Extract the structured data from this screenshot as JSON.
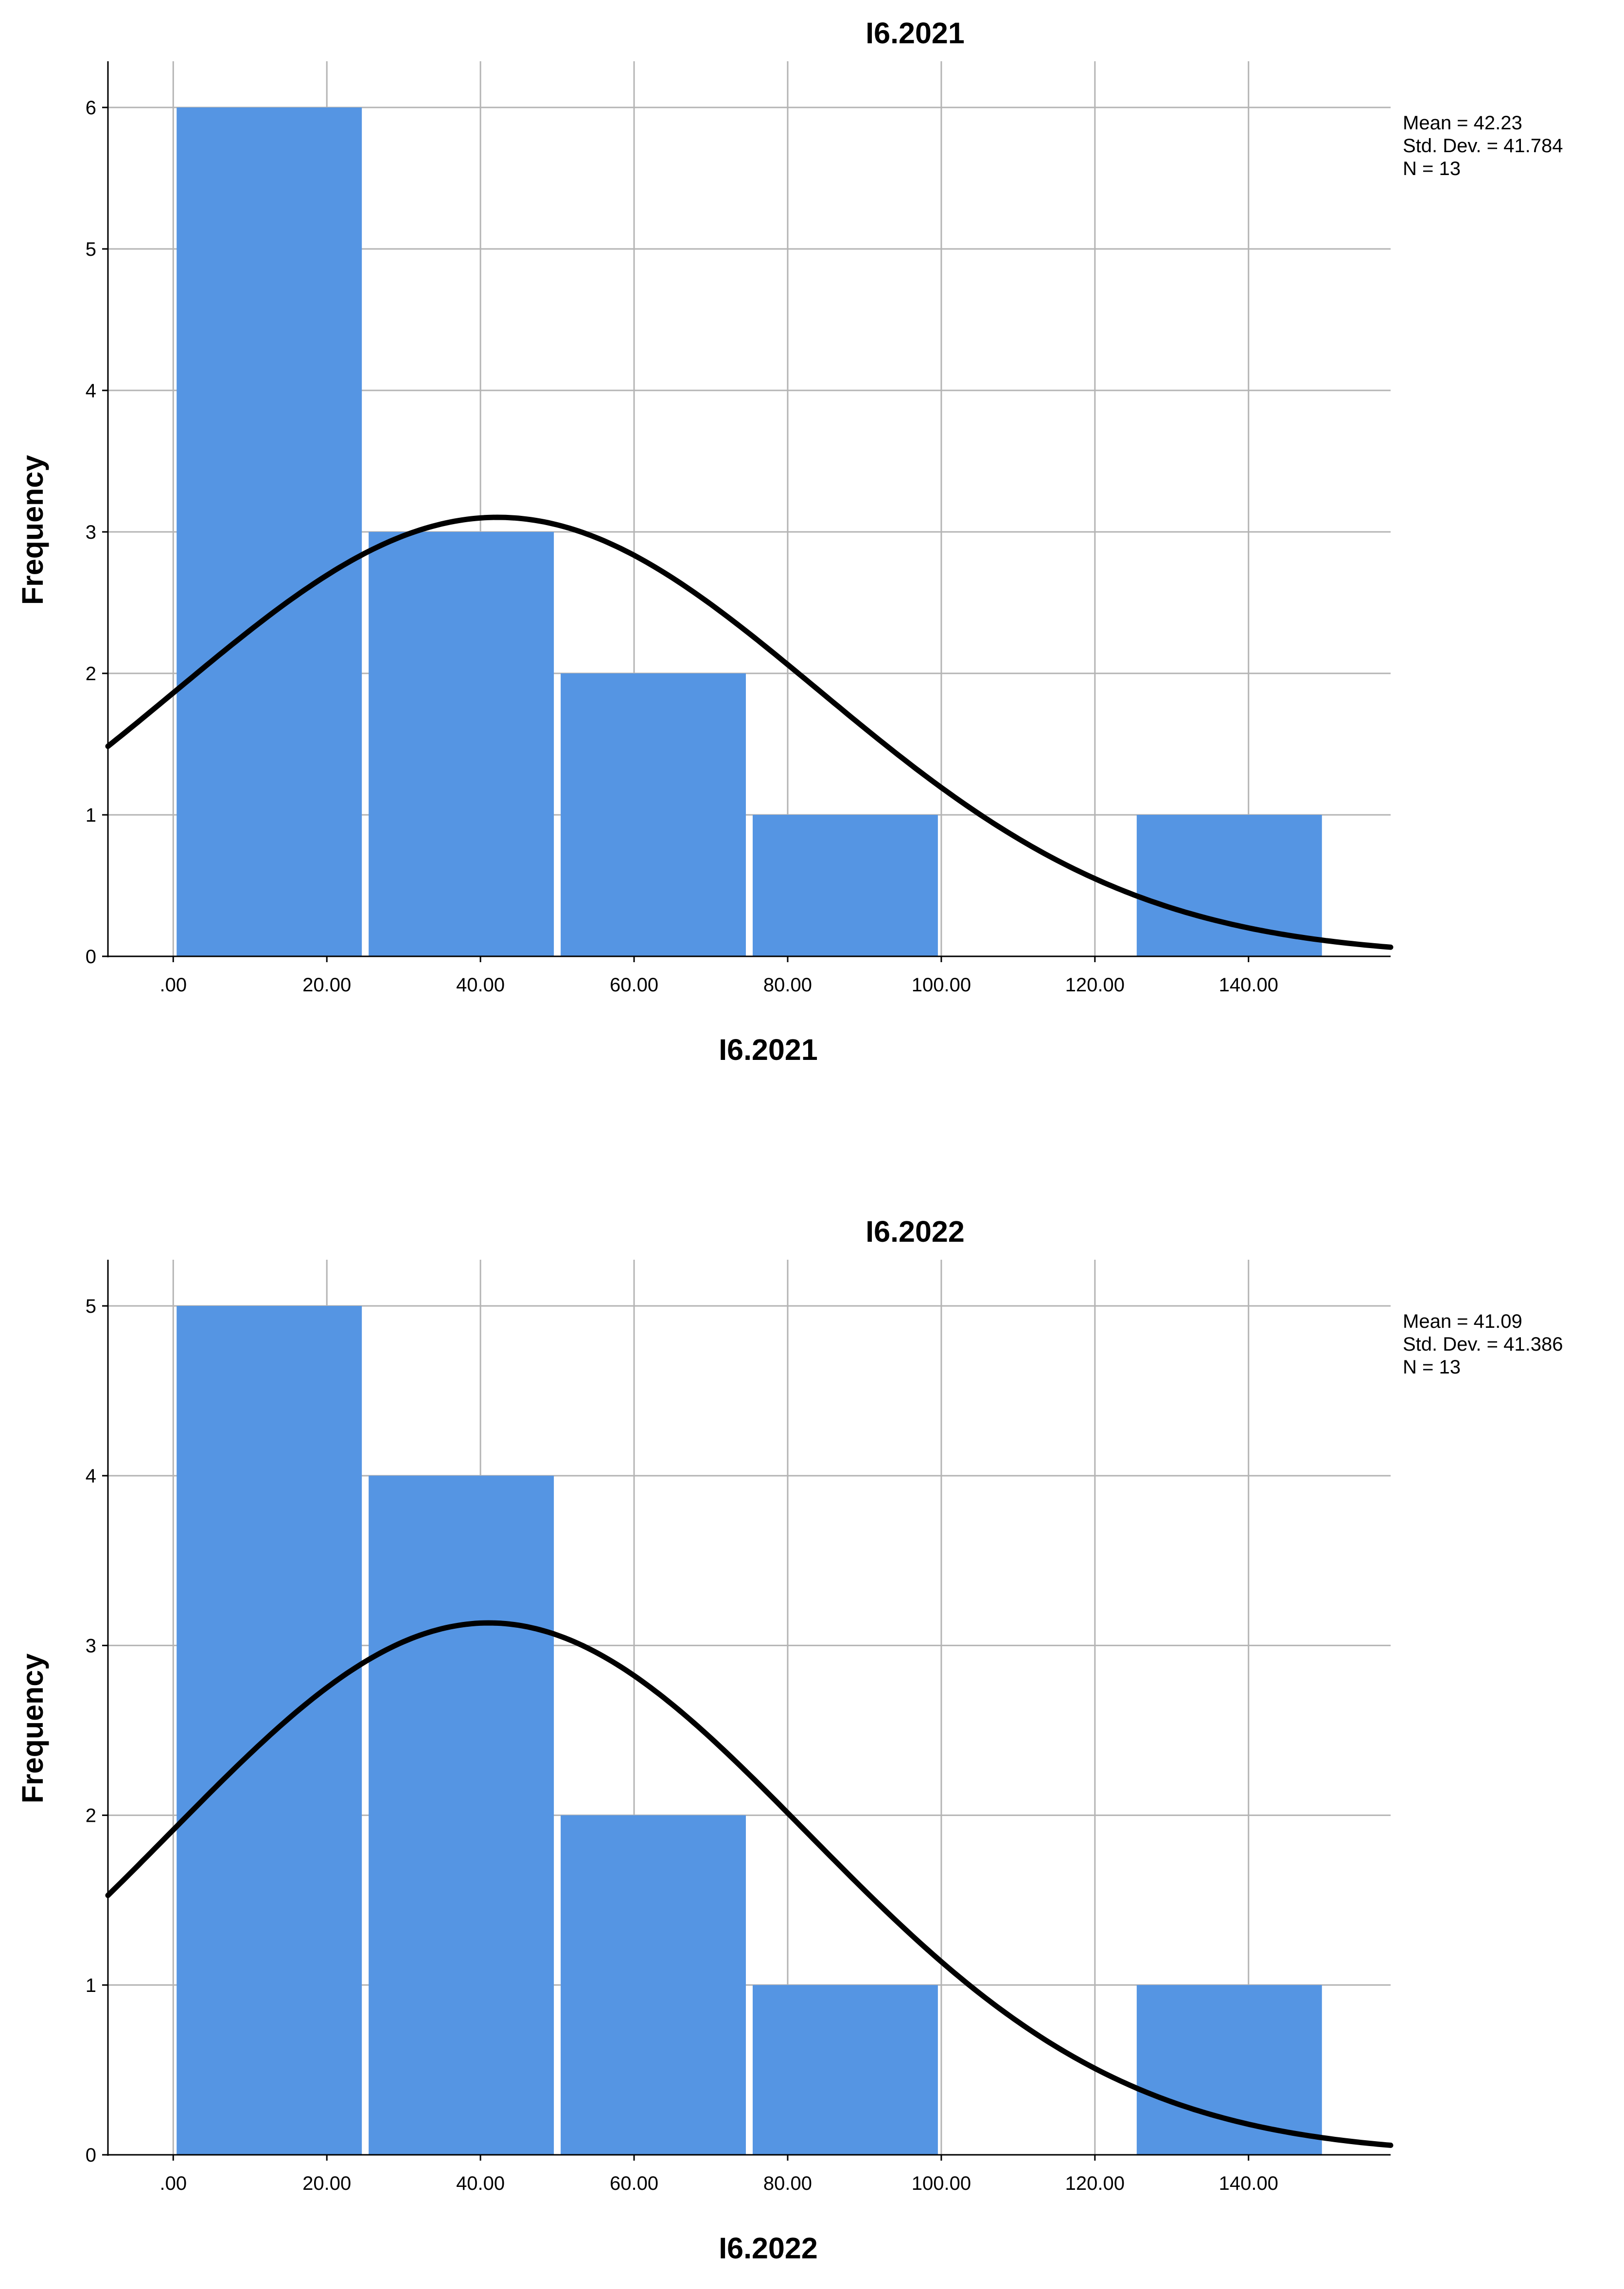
{
  "colors": {
    "bar": "#5595e3",
    "grid": "#b4b4b4",
    "axis": "#000000",
    "curve": "#000000",
    "background": "#ffffff"
  },
  "chart_data": [
    {
      "type": "bar",
      "chart_kind": "histogram with normal curve",
      "title": "I6.2021",
      "xlabel": "I6.2021",
      "ylabel": "Frequency",
      "bins": [
        {
          "start": 0,
          "end": 25,
          "count": 6
        },
        {
          "start": 25,
          "end": 50,
          "count": 3
        },
        {
          "start": 50,
          "end": 75,
          "count": 2
        },
        {
          "start": 75,
          "end": 100,
          "count": 1
        },
        {
          "start": 100,
          "end": 125,
          "count": 0
        },
        {
          "start": 125,
          "end": 150,
          "count": 1
        }
      ],
      "x_ticks": [
        {
          "value": 0,
          "label": ".00"
        },
        {
          "value": 20,
          "label": "20.00"
        },
        {
          "value": 40,
          "label": "40.00"
        },
        {
          "value": 60,
          "label": "60.00"
        },
        {
          "value": 80,
          "label": "80.00"
        },
        {
          "value": 100,
          "label": "100.00"
        },
        {
          "value": 120,
          "label": "120.00"
        },
        {
          "value": 140,
          "label": "140.00"
        }
      ],
      "y_ticks": [
        0,
        1,
        2,
        3,
        4,
        5,
        6
      ],
      "xlim": [
        -8.5,
        158.5
      ],
      "ylim": [
        0,
        6
      ],
      "grid": true,
      "normal_curve": {
        "mean": 42.23,
        "sd": 41.784,
        "n": 13,
        "bin_width": 25
      },
      "stats": [
        "Mean = 42.23",
        "Std. Dev. = 41.784",
        "N = 13"
      ],
      "legend_position": "top-right"
    },
    {
      "type": "bar",
      "chart_kind": "histogram with normal curve",
      "title": "I6.2022",
      "xlabel": "I6.2022",
      "ylabel": "Frequency",
      "bins": [
        {
          "start": 0,
          "end": 25,
          "count": 5
        },
        {
          "start": 25,
          "end": 50,
          "count": 4
        },
        {
          "start": 50,
          "end": 75,
          "count": 2
        },
        {
          "start": 75,
          "end": 100,
          "count": 1
        },
        {
          "start": 100,
          "end": 125,
          "count": 0
        },
        {
          "start": 125,
          "end": 150,
          "count": 1
        }
      ],
      "x_ticks": [
        {
          "value": 0,
          "label": ".00"
        },
        {
          "value": 20,
          "label": "20.00"
        },
        {
          "value": 40,
          "label": "40.00"
        },
        {
          "value": 60,
          "label": "60.00"
        },
        {
          "value": 80,
          "label": "80.00"
        },
        {
          "value": 100,
          "label": "100.00"
        },
        {
          "value": 120,
          "label": "120.00"
        },
        {
          "value": 140,
          "label": "140.00"
        }
      ],
      "y_ticks": [
        0,
        1,
        2,
        3,
        4,
        5
      ],
      "xlim": [
        -8.5,
        158.5
      ],
      "ylim": [
        0,
        5
      ],
      "grid": true,
      "normal_curve": {
        "mean": 41.09,
        "sd": 41.386,
        "n": 13,
        "bin_width": 25
      },
      "stats": [
        "Mean = 41.09",
        "Std. Dev. = 41.386",
        "N = 13"
      ],
      "legend_position": "top-right"
    }
  ]
}
